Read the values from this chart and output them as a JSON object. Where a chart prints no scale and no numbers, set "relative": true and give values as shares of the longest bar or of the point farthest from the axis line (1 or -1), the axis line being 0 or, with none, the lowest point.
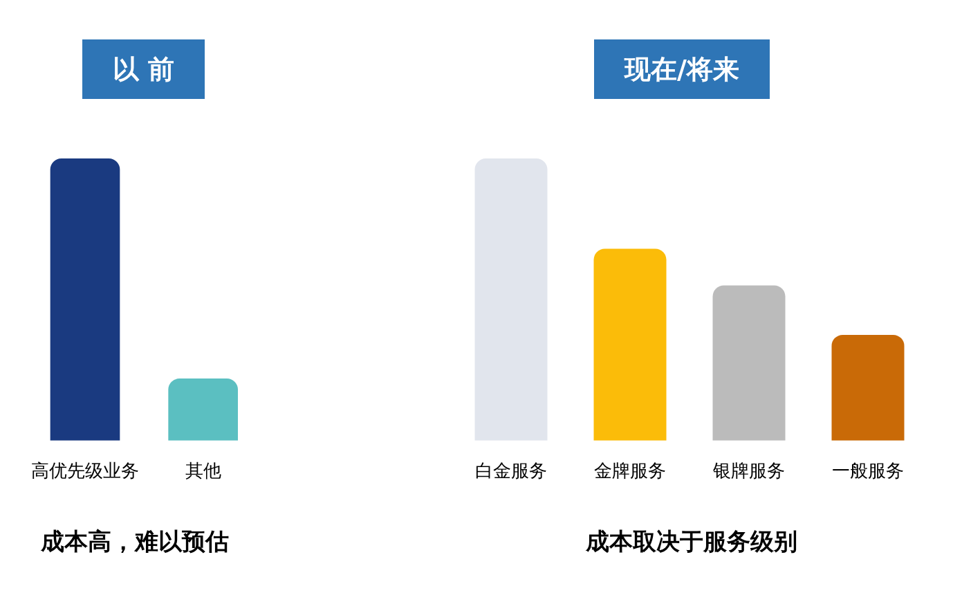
{
  "chart_data": [
    {
      "type": "bar",
      "title": "以 前",
      "categories": [
        "高优先级业务",
        "其他"
      ],
      "values": [
        1,
        0.22
      ],
      "colors": [
        "#1a3a80",
        "#5bbfc1"
      ],
      "relative": true,
      "annotations": [
        "成本高，难以预估"
      ]
    },
    {
      "type": "bar",
      "title": "现在/将来",
      "categories": [
        "白金服务",
        "金牌服务",
        "银牌服务",
        "一般服务"
      ],
      "values": [
        1,
        0.68,
        0.55,
        0.375
      ],
      "colors": [
        "#e1e5ed",
        "#fbbc09",
        "#bbbbbb",
        "#c96a07"
      ],
      "relative": true,
      "annotations": [
        "成本取决于服务级别"
      ]
    }
  ]
}
